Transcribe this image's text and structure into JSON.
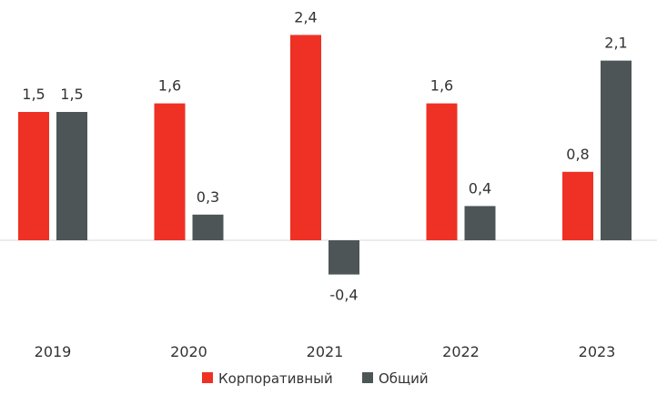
{
  "chart_data": {
    "type": "bar",
    "categories": [
      "2019",
      "2020",
      "2021",
      "2022",
      "2023"
    ],
    "series": [
      {
        "name": "Корпоративный",
        "values": [
          1.5,
          1.6,
          2.4,
          1.6,
          0.8
        ],
        "value_labels": [
          "1,5",
          "1,6",
          "2,4",
          "1,6",
          "0,8"
        ]
      },
      {
        "name": "Общий",
        "values": [
          1.5,
          0.3,
          -0.4,
          0.4,
          2.1
        ],
        "value_labels": [
          "1,5",
          "0,3",
          "-0,4",
          "0,4",
          "2,1"
        ]
      }
    ],
    "colors": [
      "#ee3124",
      "#4d5557"
    ],
    "axis_color": "#d9d9d9",
    "ylim": [
      -0.4,
      2.4
    ],
    "grid": false,
    "legend_position": "bottom-center"
  }
}
